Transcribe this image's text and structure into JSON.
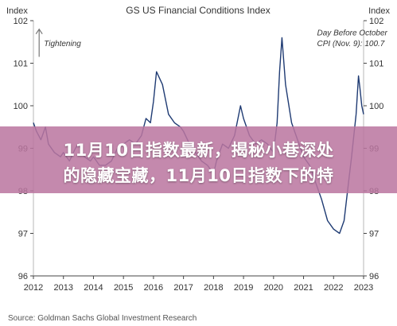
{
  "chart_data": {
    "type": "line",
    "title": "GS US Financial Conditions Index",
    "ylabel_left": "Index",
    "ylabel_right": "Index",
    "ylim": [
      96,
      102
    ],
    "yticks": [
      "96",
      "97",
      "98",
      "99",
      "100",
      "101",
      "102"
    ],
    "xlim": [
      2012,
      2023
    ],
    "xticks": [
      "2012",
      "2013",
      "2014",
      "2015",
      "2016",
      "2017",
      "2018",
      "2019",
      "2020",
      "2021",
      "2022",
      "2023"
    ],
    "grid": false,
    "series": [
      {
        "color": "#1f3b73",
        "x": [
          2012.0,
          2012.1,
          2012.25,
          2012.4,
          2012.5,
          2012.7,
          2012.9,
          2013.0,
          2013.2,
          2013.4,
          2013.5,
          2013.7,
          2013.9,
          2014.0,
          2014.2,
          2014.4,
          2014.6,
          2014.8,
          2015.0,
          2015.2,
          2015.4,
          2015.6,
          2015.75,
          2015.9,
          2016.0,
          2016.1,
          2016.3,
          2016.5,
          2016.7,
          2016.9,
          2017.0,
          2017.2,
          2017.4,
          2017.6,
          2017.8,
          2018.0,
          2018.1,
          2018.3,
          2018.5,
          2018.7,
          2018.9,
          2019.0,
          2019.2,
          2019.4,
          2019.6,
          2019.8,
          2020.0,
          2020.12,
          2020.2,
          2020.28,
          2020.4,
          2020.6,
          2020.8,
          2021.0,
          2021.2,
          2021.4,
          2021.6,
          2021.8,
          2022.0,
          2022.2,
          2022.35,
          2022.5,
          2022.6,
          2022.75,
          2022.83,
          2022.88,
          2022.94,
          2023.0
        ],
        "values": [
          99.6,
          99.4,
          99.2,
          99.5,
          99.1,
          98.9,
          98.8,
          98.9,
          98.7,
          99.0,
          99.1,
          98.8,
          98.7,
          98.8,
          98.6,
          98.6,
          98.7,
          99.0,
          99.1,
          99.2,
          99.1,
          99.3,
          99.7,
          99.6,
          100.1,
          100.8,
          100.5,
          99.8,
          99.6,
          99.5,
          99.4,
          99.1,
          98.9,
          98.7,
          98.6,
          98.4,
          98.7,
          99.1,
          99.0,
          99.3,
          100.0,
          99.7,
          99.3,
          99.1,
          99.2,
          99.1,
          98.9,
          99.6,
          100.8,
          101.6,
          100.5,
          99.6,
          99.2,
          98.8,
          98.6,
          98.2,
          97.8,
          97.3,
          97.1,
          97.0,
          97.3,
          98.2,
          98.8,
          99.8,
          100.7,
          100.4,
          100.0,
          99.8
        ]
      }
    ],
    "annotations": [
      {
        "text": "Tightening",
        "x": 2012.35,
        "y": 101.4
      },
      {
        "text": "Day Before October",
        "x": 2021.45,
        "y": 101.65
      },
      {
        "text": "CPI (Nov. 9): 100.7",
        "x": 2021.45,
        "y": 101.4
      }
    ],
    "source": "Source: Goldman Sachs Global Investment Research"
  },
  "banner": {
    "line1": "11月10日指数最新，揭秘小巷深处",
    "line2": "的隐藏宝藏，11月10日指数下的特"
  },
  "colors": {
    "series": "#1f3b73",
    "axis": "#444444",
    "banner": "#ba76a0"
  }
}
